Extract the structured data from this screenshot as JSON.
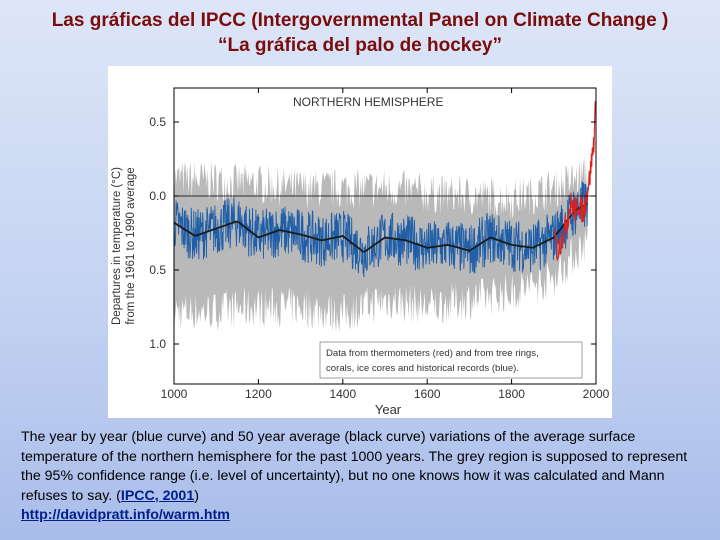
{
  "slide": {
    "title_line1": "Las gráficas del IPCC (Intergovernmental Panel on Climate Change )",
    "title_line2": "“La gráfica del palo de hockey”",
    "caption_text": "The year by year (blue curve) and 50 year average (black curve) variations of the average surface temperature of the northern hemisphere for the past 1000 years. The grey region is supposed to represent the 95% confidence range (i.e. level of uncertainty), but no one knows how it was calculated and Mann refuses to say. (",
    "caption_link1": "IPCC, 2001",
    "caption_close": ")",
    "caption_link2": "http://davidpratt.info/warm.htm"
  },
  "chart_data": {
    "type": "line",
    "title": "NORTHERN HEMISPHERE",
    "xlabel": "Year",
    "ylabel_line1": "Departures in temperature (°C)",
    "ylabel_line2": "from the 1961 to 1990 average",
    "xlim": [
      1000,
      2000
    ],
    "ylim": [
      -1.0,
      0.5
    ],
    "x_ticks": [
      "1000",
      "1200",
      "1400",
      "1600",
      "1800",
      "2000"
    ],
    "y_ticks": [
      {
        "value": 0.5,
        "label": "0.5"
      },
      {
        "value": 0.0,
        "label": "0.0"
      },
      {
        "value": -0.5,
        "label": "0.5"
      },
      {
        "value": -1.0,
        "label": "1.0"
      }
    ],
    "zero_line": 0.0,
    "legend_text_line1": "Data from thermometers (red) and from tree rings,",
    "legend_text_line2": "corals, ice cores and historical records (blue).",
    "legend_position": "bottom-right",
    "colors": {
      "proxy": "#1f5ea8",
      "smooth": "#1a1a1a",
      "instrumental": "#e0201b",
      "uncertainty": "#b9b9b9"
    },
    "series": [
      {
        "name": "50 year average",
        "x": [
          1000,
          1050,
          1100,
          1150,
          1200,
          1250,
          1300,
          1350,
          1400,
          1450,
          1500,
          1550,
          1600,
          1650,
          1700,
          1750,
          1800,
          1850,
          1900,
          1950,
          1980
        ],
        "y": [
          -0.18,
          -0.27,
          -0.22,
          -0.17,
          -0.28,
          -0.23,
          -0.26,
          -0.3,
          -0.27,
          -0.38,
          -0.28,
          -0.3,
          -0.35,
          -0.33,
          -0.37,
          -0.28,
          -0.33,
          -0.35,
          -0.28,
          -0.1,
          -0.05
        ]
      },
      {
        "name": "uncertainty band",
        "x": [
          1000,
          1100,
          1200,
          1300,
          1400,
          1500,
          1600,
          1700,
          1800,
          1900,
          1980
        ],
        "upper": [
          0.12,
          0.1,
          0.08,
          0.05,
          0.05,
          0.05,
          0.02,
          0.0,
          -0.02,
          0.05,
          0.15
        ],
        "lower": [
          -0.78,
          -0.78,
          -0.75,
          -0.75,
          -0.8,
          -0.7,
          -0.75,
          -0.7,
          -0.65,
          -0.55,
          -0.3
        ]
      },
      {
        "name": "thermometers",
        "x": [
          1902,
          1910,
          1920,
          1930,
          1940,
          1950,
          1960,
          1970,
          1980,
          1985,
          1990,
          1995,
          1998
        ],
        "y": [
          -0.3,
          -0.38,
          -0.27,
          -0.18,
          -0.05,
          -0.1,
          -0.05,
          -0.12,
          0.05,
          0.12,
          0.25,
          0.38,
          0.58
        ]
      }
    ]
  }
}
